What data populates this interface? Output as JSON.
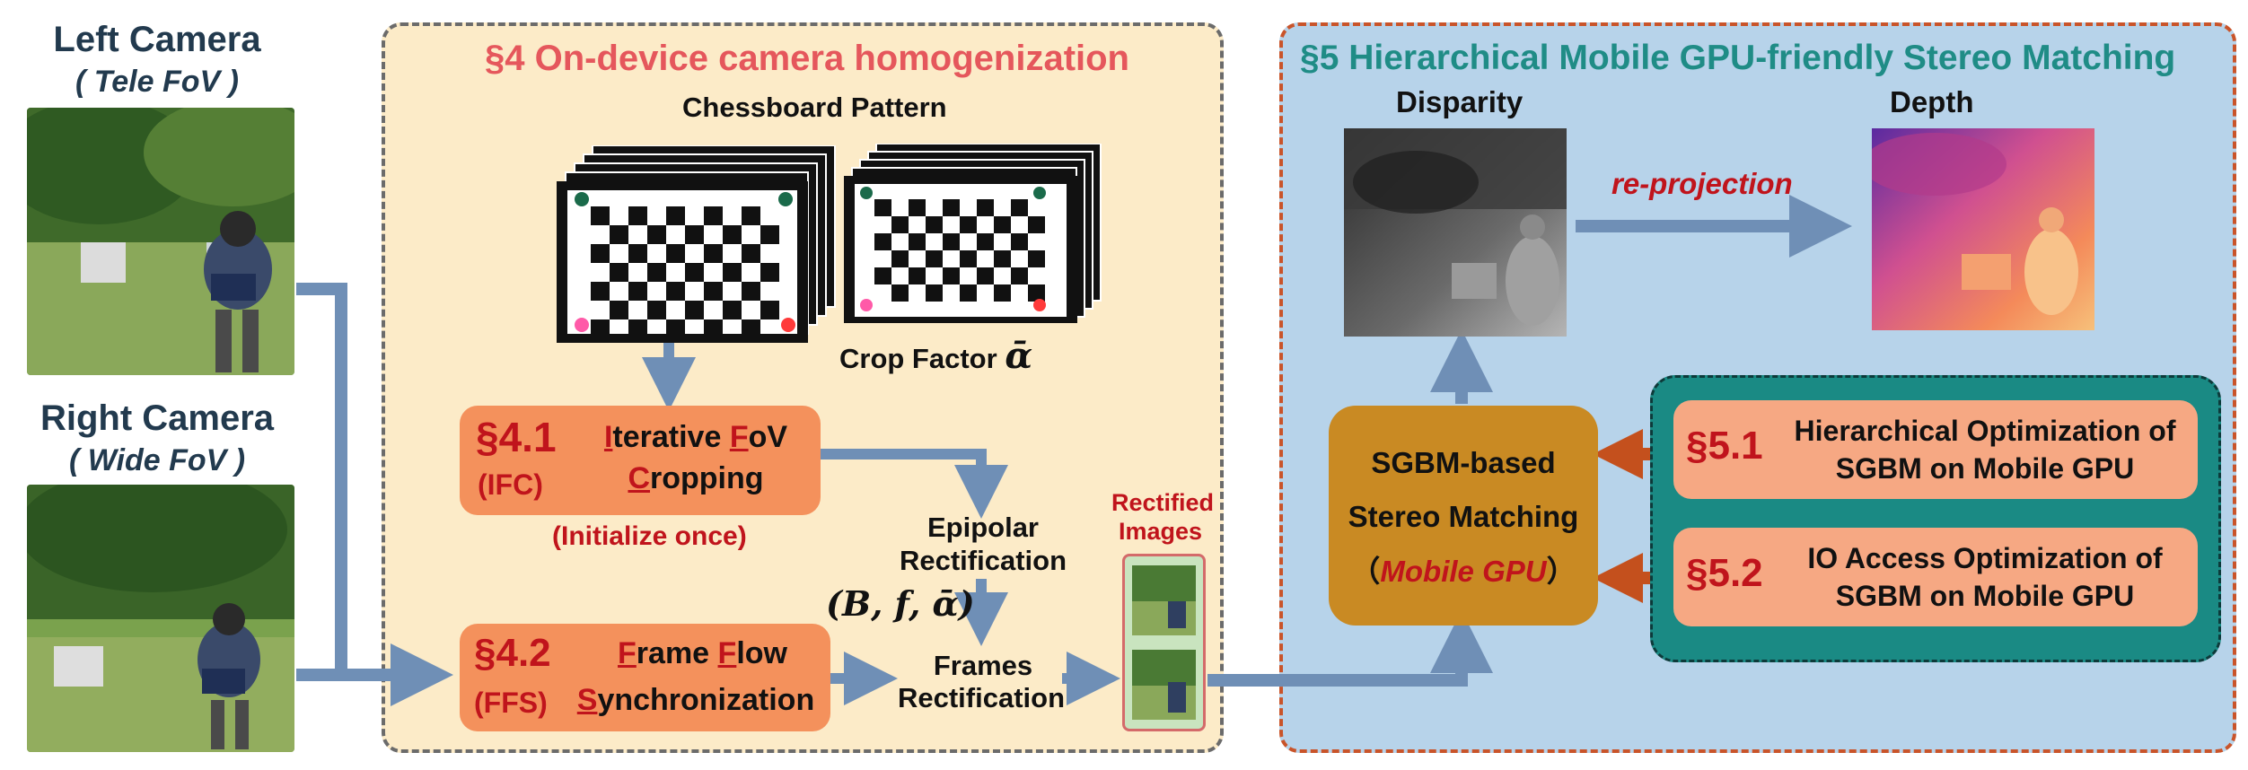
{
  "cameras": {
    "left_title": "Left Camera",
    "left_sub": "( Tele FoV )",
    "right_title": "Right Camera",
    "right_sub": "( Wide FoV )"
  },
  "section4": {
    "title": "§4 On-device camera homogenization",
    "chessboard_label": "Chessboard Pattern",
    "crop_factor_label": "Crop Factor",
    "crop_factor_symbol": "ᾱ",
    "ifc": {
      "num": "§4.1",
      "abbr": "(IFC)",
      "line1_u1": "I",
      "line1_r1": "terative ",
      "line1_u2": "F",
      "line1_r2": "oV",
      "line2_u": "C",
      "line2_r": "ropping",
      "note": "(Initialize once)"
    },
    "ffs": {
      "num": "§4.2",
      "abbr": "(FFS)",
      "line1_u1": "F",
      "line1_r1": "rame ",
      "line1_u2": "F",
      "line1_r2": "low",
      "line2_u": "S",
      "line2_r": "ynchronization"
    },
    "epipolar": [
      "Epipolar",
      "Rectification"
    ],
    "params": "(B, f, ᾱ)",
    "frames": [
      "Frames",
      "Rectification"
    ],
    "rectified": [
      "Rectified",
      "Images"
    ]
  },
  "section5": {
    "title": "§5 Hierarchical Mobile GPU-friendly Stereo Matching",
    "disparity_label": "Disparity",
    "depth_label": "Depth",
    "reprojection": "re-projection",
    "sgbm": {
      "line1": "SGBM-based",
      "line2": "Stereo Matching",
      "line3_open": "（",
      "line3_em": "Mobile GPU",
      "line3_close": "）"
    },
    "opt1": {
      "num": "§5.1",
      "line1": "Hierarchical Optimization of",
      "line2": "SGBM on Mobile GPU"
    },
    "opt2": {
      "num": "§5.2",
      "line1": "IO Access Optimization of",
      "line2": "SGBM on Mobile GPU"
    }
  },
  "colors": {
    "panel4_bg": "#fcebc8",
    "panel5_bg": "#b7d3ea",
    "arrow": "#6f8fb6",
    "red_arrow": "#c4501d",
    "orange_box": "#f4915c",
    "sgbm_box": "#c98a23",
    "teal": "#1a8a84",
    "section_red": "#e5575c",
    "section_teal": "#1f8c86"
  }
}
